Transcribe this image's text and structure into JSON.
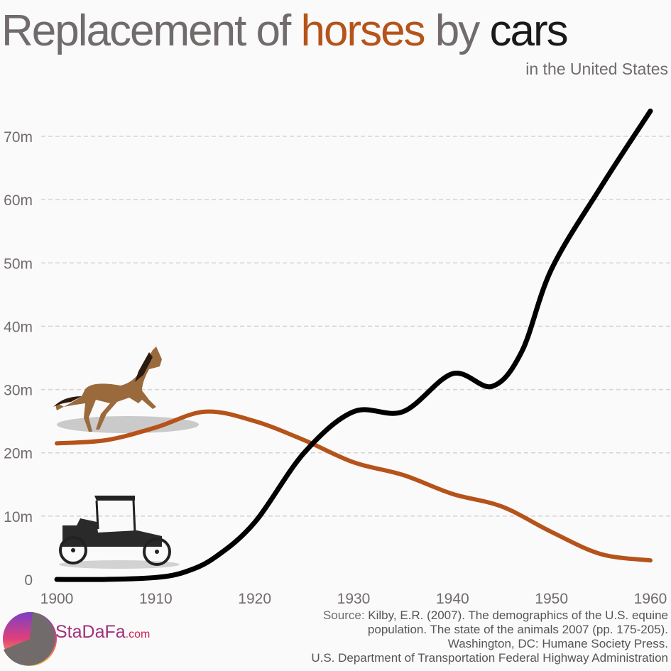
{
  "title": {
    "part1": "Replacement of ",
    "part2": "horses",
    "part3": " by ",
    "part4": "cars"
  },
  "subtitle": "in the United States",
  "source": {
    "label": "Source:",
    "line1": " Kilby, E.R. (2007). The demographics of the U.S. equine",
    "line2": "population. The state of the animals 2007 (pp. 175-205).",
    "line3": "Washington, DC: Humane Society Press.",
    "line4": "U.S. Department of Transportation Federal Highway Administration"
  },
  "logo": {
    "name": "StaDaFa",
    "suffix": ".com"
  },
  "chart_data": {
    "type": "line",
    "title": "Replacement of horses by cars",
    "subtitle": "in the United States",
    "xlim": [
      1900,
      1960
    ],
    "ylim": [
      0,
      70
    ],
    "x_ticks": [
      "1900",
      "1910",
      "1920",
      "1930",
      "1940",
      "1950",
      "1960"
    ],
    "y_ticks": [
      "0",
      "10m",
      "20m",
      "30m",
      "40m",
      "50m",
      "60m",
      "70m"
    ],
    "grid": "horizontal dashed",
    "series": [
      {
        "name": "horses",
        "color": "#b5531a",
        "x": [
          1900,
          1905,
          1910,
          1915,
          1920,
          1925,
          1930,
          1935,
          1940,
          1945,
          1950,
          1955,
          1960
        ],
        "y": [
          21.5,
          22,
          24,
          26.5,
          25,
          22,
          18.5,
          16.5,
          13.5,
          11.5,
          7.5,
          4,
          3
        ]
      },
      {
        "name": "cars",
        "color": "#000000",
        "x": [
          1900,
          1905,
          1910,
          1913,
          1916,
          1920,
          1925,
          1930,
          1935,
          1940,
          1944,
          1947,
          1950,
          1955,
          1960
        ],
        "y": [
          0,
          0,
          0.3,
          1.2,
          3.5,
          9,
          20,
          26.5,
          26.5,
          32.5,
          30.5,
          36,
          49,
          62,
          74
        ]
      }
    ]
  }
}
